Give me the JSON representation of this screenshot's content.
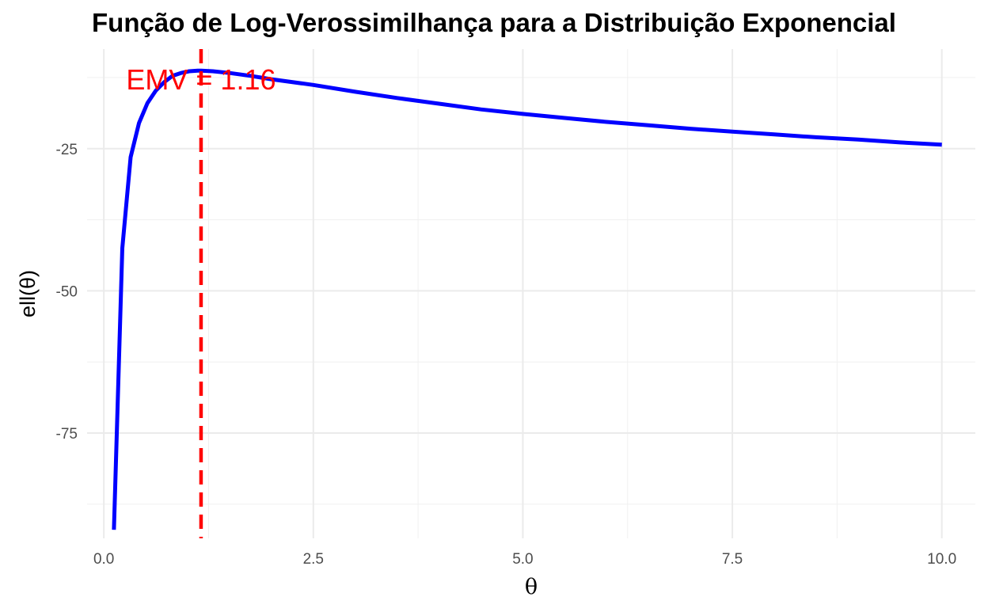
{
  "chart_data": {
    "type": "line",
    "title": "Função de Log-Verossimilhança para a Distribuição Exponencial",
    "xlabel": "θ",
    "ylabel": "ell(θ)",
    "xlim": [
      -0.2,
      10.4
    ],
    "ylim": [
      -93.5,
      -7.5
    ],
    "x_ticks": [
      0.0,
      2.5,
      5.0,
      7.5,
      10.0
    ],
    "x_tick_labels": [
      "0.0",
      "2.5",
      "5.0",
      "7.5",
      "10.0"
    ],
    "y_ticks": [
      -25,
      -50,
      -75
    ],
    "y_tick_labels": [
      "-25",
      "-50",
      "-75"
    ],
    "grid": true,
    "series": [
      {
        "color": "#0000ff",
        "x": [
          0.12,
          0.22,
          0.32,
          0.42,
          0.52,
          0.62,
          0.72,
          0.82,
          0.92,
          1.02,
          1.12,
          1.16,
          1.3,
          1.5,
          1.75,
          2.0,
          2.5,
          3.0,
          3.5,
          4.0,
          4.5,
          5.0,
          5.5,
          6.0,
          6.5,
          7.0,
          7.5,
          8.0,
          8.5,
          9.0,
          9.5,
          10.0
        ],
        "y": [
          -92.0,
          -42.5,
          -26.5,
          -20.5,
          -17.0,
          -14.8,
          -13.3,
          -12.2,
          -11.7,
          -11.4,
          -11.3,
          -11.3,
          -11.4,
          -11.7,
          -12.2,
          -12.8,
          -13.8,
          -15.0,
          -16.1,
          -17.1,
          -18.1,
          -18.9,
          -19.6,
          -20.3,
          -20.9,
          -21.5,
          -22.0,
          -22.5,
          -23.0,
          -23.4,
          -23.9,
          -24.3
        ]
      }
    ],
    "vline": {
      "x": 1.16,
      "color": "#ff0000",
      "style": "dashed"
    },
    "annotation": {
      "text": "EMV = 1.16",
      "x": 1.16,
      "y": -14.6,
      "color": "#ff0000"
    }
  }
}
